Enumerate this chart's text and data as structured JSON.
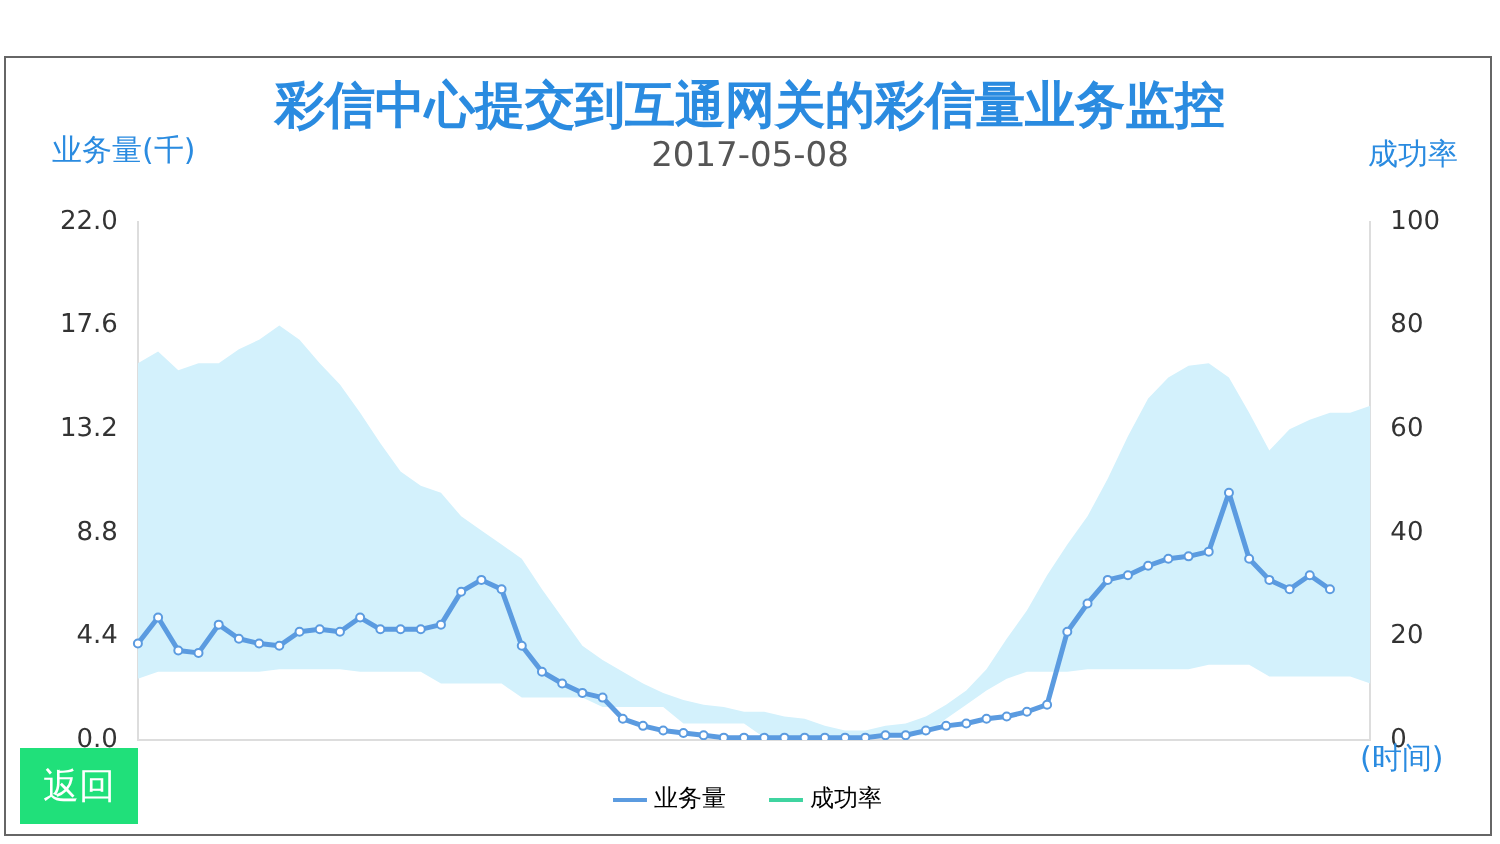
{
  "chart_data": {
    "type": "line",
    "title": "彩信中心提交到互通网关的彩信量业务监控",
    "subtitle": "2017-05-08",
    "ylabel": "业务量(千)",
    "y2label": "成功率",
    "xlabel": "(时间)",
    "annotations": [
      "返回"
    ],
    "categories": [
      null,
      null,
      null,
      null,
      null,
      null,
      null,
      null,
      null,
      null,
      null,
      null,
      null,
      null,
      null,
      null,
      null,
      null,
      null,
      null,
      null,
      null,
      null,
      null,
      null,
      null,
      null,
      null,
      null,
      null,
      null,
      null,
      null,
      null,
      null,
      null,
      null,
      null,
      null,
      null,
      null,
      null,
      null,
      null,
      null,
      null,
      null,
      null,
      null,
      null,
      null,
      null,
      null,
      null,
      null,
      null,
      null,
      null,
      null,
      null,
      null,
      null
    ],
    "series": [
      {
        "name": "业务量",
        "color": "#5b9be0",
        "values": [
          4.1,
          5.2,
          3.8,
          3.7,
          4.9,
          4.3,
          4.1,
          4.0,
          4.6,
          4.7,
          4.6,
          5.2,
          4.7,
          4.7,
          4.7,
          4.9,
          6.3,
          6.8,
          6.4,
          4.0,
          2.9,
          2.4,
          2.0,
          1.8,
          0.9,
          0.6,
          0.4,
          0.3,
          0.2,
          0.1,
          0.1,
          0.1,
          0.1,
          0.1,
          0.1,
          0.1,
          0.1,
          0.2,
          0.2,
          0.4,
          0.6,
          0.7,
          0.9,
          1.0,
          1.2,
          1.5,
          4.6,
          5.8,
          6.8,
          7.0,
          7.4,
          7.7,
          7.8,
          8.0,
          10.5,
          7.7,
          6.8,
          6.4,
          7.0,
          6.4,
          null,
          null
        ],
        "upper": [
          16.0,
          16.5,
          15.7,
          16.0,
          16.0,
          16.6,
          17.0,
          17.6,
          17.0,
          16.0,
          15.1,
          13.9,
          12.6,
          11.4,
          10.8,
          10.5,
          9.5,
          8.9,
          8.3,
          7.7,
          6.4,
          5.2,
          4.0,
          3.4,
          2.9,
          2.4,
          2.0,
          1.7,
          1.5,
          1.4,
          1.2,
          1.2,
          1.0,
          0.9,
          0.6,
          0.4,
          0.4,
          0.6,
          0.7,
          1.0,
          1.5,
          2.1,
          3.0,
          4.3,
          5.5,
          7.0,
          8.3,
          9.5,
          11.1,
          12.9,
          14.5,
          15.4,
          15.9,
          16.0,
          15.4,
          13.9,
          12.3,
          13.2,
          13.6,
          13.9,
          13.9,
          14.2
        ],
        "lower": [
          2.6,
          2.9,
          2.9,
          2.9,
          2.9,
          2.9,
          2.9,
          3.0,
          3.0,
          3.0,
          3.0,
          2.9,
          2.9,
          2.9,
          2.9,
          2.4,
          2.4,
          2.4,
          2.4,
          1.8,
          1.8,
          1.8,
          1.8,
          1.4,
          1.4,
          1.4,
          1.4,
          0.7,
          0.7,
          0.7,
          0.7,
          0.1,
          0.1,
          0.1,
          0.1,
          0.1,
          0.2,
          0.2,
          0.2,
          0.2,
          0.9,
          1.5,
          2.1,
          2.6,
          2.9,
          2.9,
          2.9,
          3.0,
          3.0,
          3.0,
          3.0,
          3.0,
          3.0,
          3.2,
          3.2,
          3.2,
          2.7,
          2.7,
          2.7,
          2.7,
          2.7,
          2.4
        ]
      },
      {
        "name": "成功率",
        "color": "#3fd4a0",
        "values": [
          null,
          null,
          null,
          null,
          null,
          null,
          null,
          null,
          null,
          null,
          null,
          null,
          null,
          null,
          null,
          null,
          null,
          null,
          null,
          null,
          null,
          null,
          null,
          null,
          null,
          null,
          null,
          null,
          null,
          null,
          null,
          null,
          null,
          null,
          null,
          null,
          null,
          null,
          null,
          null,
          null,
          null,
          null,
          null,
          null,
          null,
          null,
          null,
          null,
          null,
          null,
          null,
          null,
          null,
          null,
          null,
          null,
          null,
          null,
          null,
          null,
          null
        ]
      }
    ],
    "ylim": [
      0,
      22
    ],
    "yticks": [
      {
        "value": 0,
        "label": "0.0"
      },
      {
        "value": 4.4,
        "label": "4.4"
      },
      {
        "value": 8.8,
        "label": "8.8"
      },
      {
        "value": 13.2,
        "label": "13.2"
      },
      {
        "value": 17.6,
        "label": "17.6"
      },
      {
        "value": 22,
        "label": "22.0"
      }
    ],
    "y2lim": [
      0,
      100
    ],
    "y2ticks": [
      0,
      20,
      40,
      60,
      80,
      100
    ],
    "grid": false,
    "legend": "bottom",
    "marker": "circle"
  }
}
